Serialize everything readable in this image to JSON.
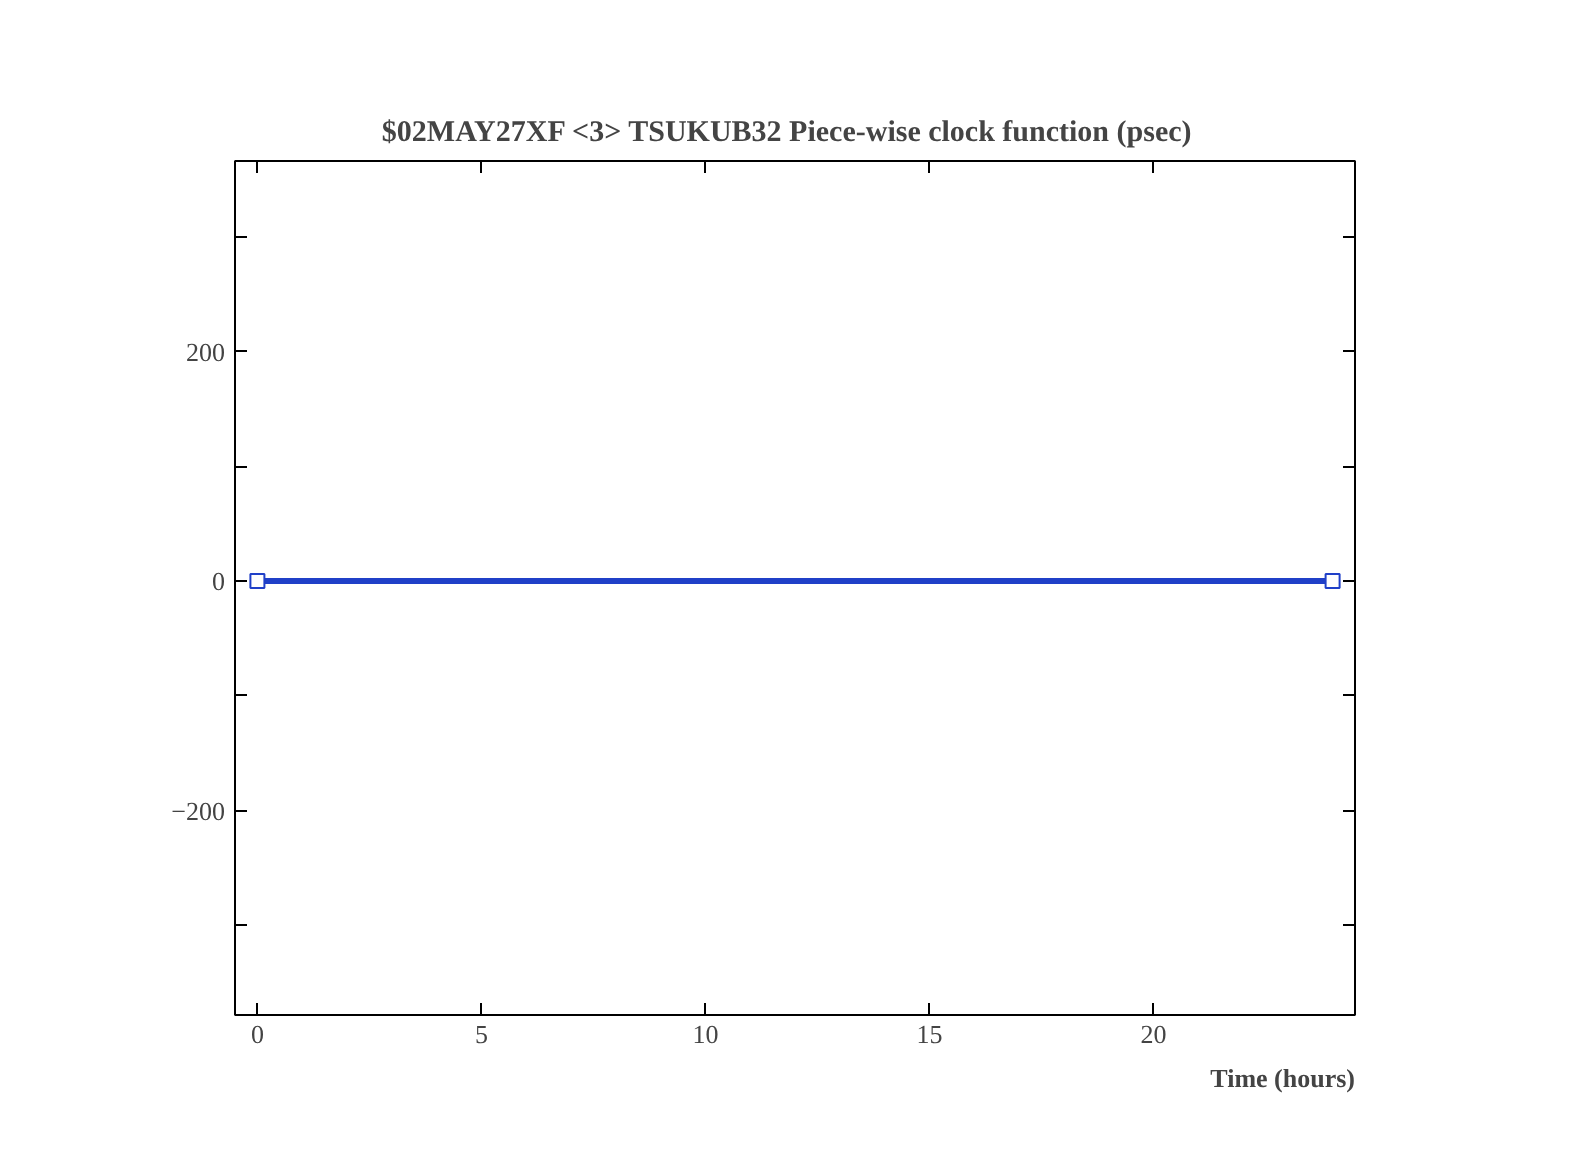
{
  "chart_data": {
    "type": "line",
    "title": "$02MAY27XF <3>  TSUKUB32  Piece-wise clock function (psec)",
    "xlabel": "Time (hours)",
    "series": [
      {
        "color": "#2040c8",
        "x": [
          0,
          24
        ],
        "values": [
          0,
          0
        ]
      }
    ],
    "xlim": [
      -0.5,
      24.5
    ],
    "xticks": [
      0,
      5,
      10,
      15,
      20
    ],
    "ylim": [
      -378,
      366
    ],
    "yticks": [
      {
        "value": -300,
        "label": null
      },
      -200,
      {
        "value": -100,
        "label": null
      },
      0,
      {
        "value": 100,
        "label": null
      },
      200,
      {
        "value": 300,
        "label": null
      }
    ],
    "marker": "square",
    "line_style": "solid"
  }
}
